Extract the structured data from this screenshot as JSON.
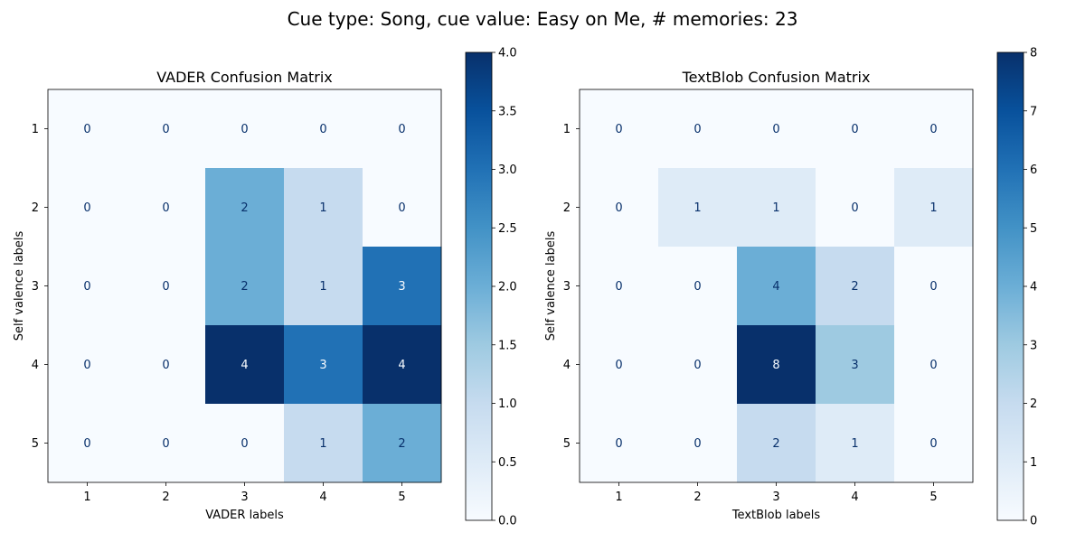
{
  "figure": {
    "suptitle": "Cue type: Song, cue value: Easy on Me, # memories: 23"
  },
  "chart_data": [
    {
      "type": "heatmap",
      "title": "VADER Confusion Matrix",
      "xlabel": "VADER labels",
      "ylabel": "Self valence labels",
      "x_categories": [
        "1",
        "2",
        "3",
        "4",
        "5"
      ],
      "y_categories": [
        "1",
        "2",
        "3",
        "4",
        "5"
      ],
      "values": [
        [
          0,
          0,
          0,
          0,
          0
        ],
        [
          0,
          0,
          2,
          1,
          0
        ],
        [
          0,
          0,
          2,
          1,
          3
        ],
        [
          0,
          0,
          4,
          3,
          4
        ],
        [
          0,
          0,
          0,
          1,
          2
        ]
      ],
      "colormap": "Blues",
      "colorbar": {
        "range": [
          0,
          4
        ],
        "ticks": [
          "0.0",
          "0.5",
          "1.0",
          "1.5",
          "2.0",
          "2.5",
          "3.0",
          "3.5",
          "4.0"
        ]
      }
    },
    {
      "type": "heatmap",
      "title": "TextBlob Confusion Matrix",
      "xlabel": "TextBlob labels",
      "ylabel": "Self valence labels",
      "x_categories": [
        "1",
        "2",
        "3",
        "4",
        "5"
      ],
      "y_categories": [
        "1",
        "2",
        "3",
        "4",
        "5"
      ],
      "values": [
        [
          0,
          0,
          0,
          0,
          0
        ],
        [
          0,
          1,
          1,
          0,
          1
        ],
        [
          0,
          0,
          4,
          2,
          0
        ],
        [
          0,
          0,
          8,
          3,
          0
        ],
        [
          0,
          0,
          2,
          1,
          0
        ]
      ],
      "colormap": "Blues",
      "colorbar": {
        "range": [
          0,
          8
        ],
        "ticks": [
          "0",
          "1",
          "2",
          "3",
          "4",
          "5",
          "6",
          "7",
          "8"
        ]
      }
    }
  ]
}
